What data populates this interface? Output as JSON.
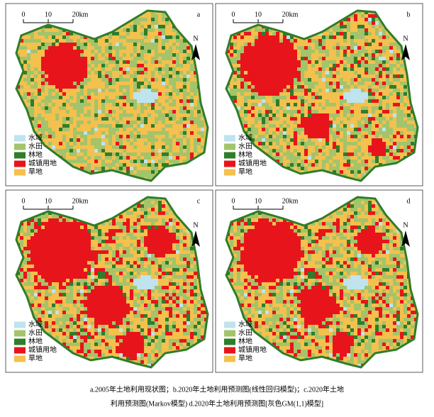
{
  "panels": [
    {
      "label": "a"
    },
    {
      "label": "b"
    },
    {
      "label": "c"
    },
    {
      "label": "d"
    }
  ],
  "scale_bar": {
    "ticks": [
      "0",
      "10",
      "20km"
    ]
  },
  "north": "N",
  "legend": [
    {
      "label": "水域",
      "color": "#bfe3ef"
    },
    {
      "label": "水田",
      "color": "#a3c46a"
    },
    {
      "label": "林地",
      "color": "#2f7d2a"
    },
    {
      "label": "城镇用地",
      "color": "#e8141b"
    },
    {
      "label": "旱地",
      "color": "#f4c04e"
    }
  ],
  "caption": [
    "a.2005年土地利用现状图；b.2020年土地利用预测图(线性回归模型)；c.2020年土地",
    "利用预测图(Markov模型) d.2020年土地利用预测图[灰色GM(1,1)模型]"
  ]
}
